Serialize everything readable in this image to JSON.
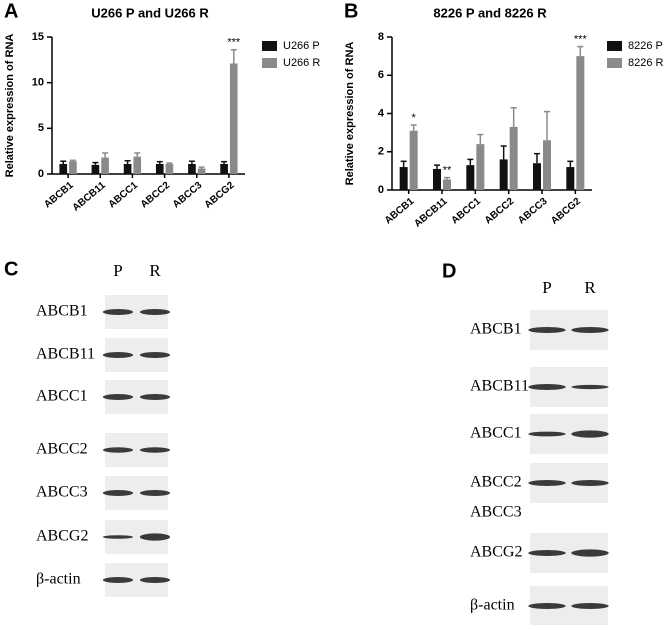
{
  "chart_data": [
    {
      "type": "bar",
      "panel": "A",
      "title": "U266 P and U266 R",
      "y_label": "Relative  expression of RNA",
      "categories": [
        "ABCB1",
        "ABCB11",
        "ABCC1",
        "ABCC2",
        "ABCC3",
        "ABCG2"
      ],
      "series": [
        {
          "name": "U266 P",
          "color": "#111111",
          "values": [
            1.1,
            1.0,
            1.1,
            1.1,
            1.1,
            1.1
          ],
          "errors": [
            0.3,
            0.25,
            0.35,
            0.25,
            0.3,
            0.25
          ]
        },
        {
          "name": "U266 R",
          "color": "#8a8a8a",
          "values": [
            1.4,
            1.8,
            1.9,
            1.1,
            0.6,
            12.1
          ],
          "errors": [
            0.1,
            0.5,
            0.4,
            0.1,
            0.15,
            1.5
          ],
          "significance": [
            null,
            null,
            null,
            null,
            null,
            "***"
          ]
        }
      ],
      "ylim": [
        0,
        15
      ],
      "yticks": [
        0,
        5,
        10,
        15
      ]
    },
    {
      "type": "bar",
      "panel": "B",
      "title": "8226 P and 8226 R",
      "y_label": "Relative  expression of RNA",
      "categories": [
        "ABCB1",
        "ABCB11",
        "ABCC1",
        "ABCC2",
        "ABCC3",
        "ABCG2"
      ],
      "series": [
        {
          "name": "8226 P",
          "color": "#111111",
          "values": [
            1.2,
            1.1,
            1.3,
            1.6,
            1.4,
            1.2
          ],
          "errors": [
            0.3,
            0.2,
            0.3,
            0.7,
            0.5,
            0.3
          ]
        },
        {
          "name": "8226 R",
          "color": "#8a8a8a",
          "values": [
            3.1,
            0.55,
            2.4,
            3.3,
            2.6,
            7.0
          ],
          "errors": [
            0.3,
            0.1,
            0.5,
            1.0,
            1.5,
            0.5
          ],
          "significance": [
            "*",
            "**",
            null,
            null,
            null,
            "***"
          ]
        }
      ],
      "ylim": [
        0,
        8
      ],
      "yticks": [
        0,
        2,
        4,
        6,
        8
      ]
    }
  ],
  "blots": [
    {
      "panel": "C",
      "columns": [
        "P",
        "R"
      ],
      "rows": [
        "ABCB1",
        "ABCB11",
        "ABCC1",
        "ABCC2",
        "ABCC3",
        "ABCG2",
        "β-actin"
      ]
    },
    {
      "panel": "D",
      "columns": [
        "P",
        "R"
      ],
      "rows": [
        "ABCB1",
        "ABCB11",
        "ABCC1",
        "ABCC2",
        "ABCC3",
        "ABCG2",
        "β-actin"
      ]
    }
  ]
}
